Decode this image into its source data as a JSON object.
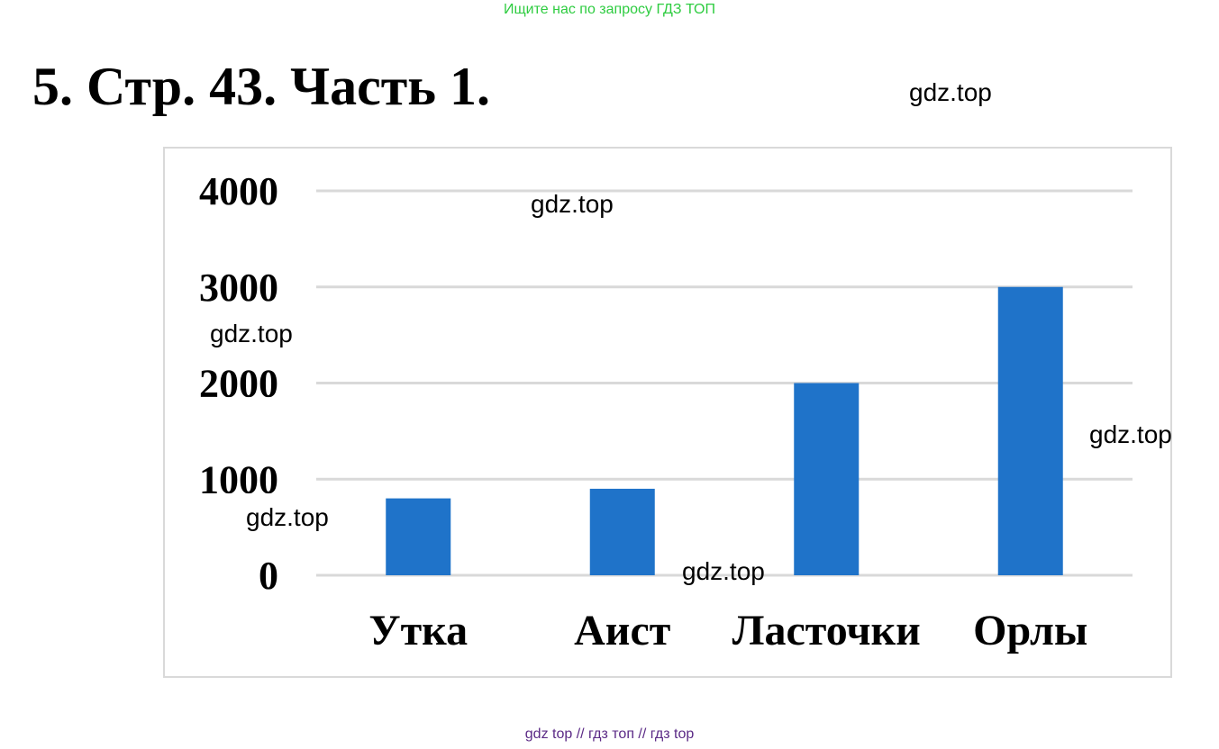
{
  "banner": "Ищите нас по запросу ГДЗ ТОП",
  "title": "5. Стр. 43. Часть 1.",
  "watermarks": [
    "gdz.top",
    "gdz.top",
    "gdz.top",
    "gdz.top",
    "gdz.top",
    "gdz.top"
  ],
  "footer": "gdz top  //  гдз топ  //  гдз top",
  "colors": {
    "bar": "#1f73c9",
    "grid": "#d9d9d9",
    "banner": "#2ecc40",
    "footer": "#5b2a86"
  },
  "chart_data": {
    "type": "bar",
    "categories": [
      "Утка",
      "Аист",
      "Ласточки",
      "Орлы"
    ],
    "values": [
      800,
      900,
      2000,
      3000
    ],
    "yticks": [
      "0",
      "1000",
      "2000",
      "3000",
      "4000"
    ],
    "ylim": [
      0,
      4000
    ],
    "title": "",
    "xlabel": "",
    "ylabel": "",
    "grid": true,
    "legend": "none"
  }
}
